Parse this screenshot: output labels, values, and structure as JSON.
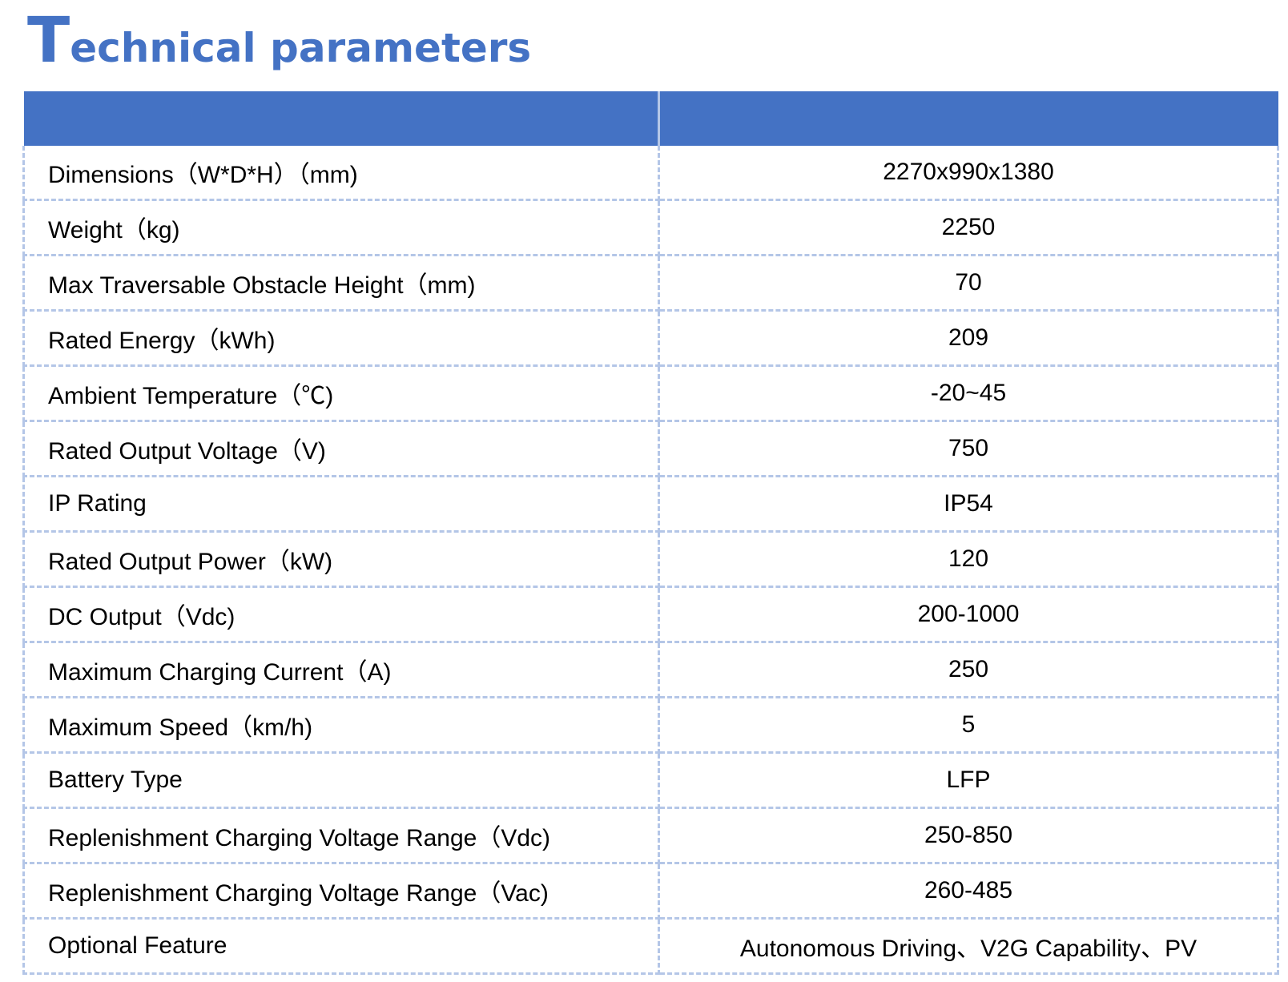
{
  "title": {
    "first_letter": "T",
    "rest": "echnical parameters"
  },
  "colors": {
    "accent": "#4472c4",
    "grid": "#b4c6e7"
  },
  "rows": [
    {
      "name": "Dimensions（W*D*H）（mm)",
      "value": "2270x990x1380"
    },
    {
      "name": "Weight（kg)",
      "value": "2250"
    },
    {
      "name": "Max Traversable Obstacle Height（mm)",
      "value": "70"
    },
    {
      "name": "Rated Energy（kWh)",
      "value": "209"
    },
    {
      "name": "Ambient Temperature（℃)",
      "value": "-20~45"
    },
    {
      "name": "Rated Output Voltage（V)",
      "value": "750"
    },
    {
      "name": "IP Rating",
      "value": "IP54"
    },
    {
      "name": "Rated Output Power（kW)",
      "value": "120"
    },
    {
      "name": "DC Output（Vdc)",
      "value": "200-1000"
    },
    {
      "name": "Maximum Charging Current（A)",
      "value": "250"
    },
    {
      "name": "Maximum Speed（km/h)",
      "value": "5"
    },
    {
      "name": "Battery Type",
      "value": "LFP"
    },
    {
      "name": "Replenishment Charging Voltage Range（Vdc)",
      "value": "250-850"
    },
    {
      "name": "Replenishment Charging Voltage Range（Vac)",
      "value": "260-485"
    },
    {
      "name": "Optional Feature",
      "value": "Autonomous Driving、V2G Capability、PV"
    }
  ]
}
